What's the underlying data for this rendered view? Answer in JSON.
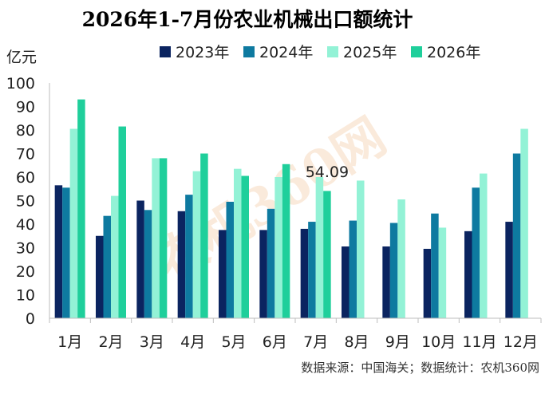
{
  "chart_data": {
    "type": "bar",
    "title": "2026年1-7月份农业机械出口额统计",
    "ylabel": "亿元",
    "ylim": [
      0,
      100
    ],
    "yticks": [
      0,
      10,
      20,
      30,
      40,
      50,
      60,
      70,
      80,
      90,
      100
    ],
    "grid": false,
    "legend": "top-right",
    "categories": [
      "1月",
      "2月",
      "3月",
      "4月",
      "5月",
      "6月",
      "7月",
      "8月",
      "9月",
      "10月",
      "11月",
      "12月"
    ],
    "series": [
      {
        "name": "2023年",
        "color": "#0b2460",
        "values": [
          56.5,
          35,
          50,
          45.5,
          37.5,
          37.5,
          38,
          30.5,
          30.5,
          29.5,
          37,
          41
        ]
      },
      {
        "name": "2024年",
        "color": "#0e7aa0",
        "values": [
          55.5,
          43.5,
          46,
          52.5,
          49.5,
          46.5,
          41,
          41.5,
          40.5,
          44.5,
          55.5,
          70
        ]
      },
      {
        "name": "2025年",
        "color": "#93f2d6",
        "values": [
          80.5,
          52,
          68,
          62.5,
          63.5,
          60,
          60,
          58.5,
          50.5,
          38.5,
          61.5,
          80.5
        ]
      },
      {
        "name": "2026年",
        "color": "#1fcf9b",
        "values": [
          93,
          81.5,
          68,
          70,
          60.5,
          65.5,
          54.09,
          null,
          null,
          null,
          null,
          null
        ]
      }
    ],
    "annotations": [
      {
        "text": "54.09"
      }
    ]
  },
  "footer": {
    "source": "数据来源：中国海关；数据统计：农机360网"
  },
  "watermark": {
    "text": "农机360网"
  }
}
